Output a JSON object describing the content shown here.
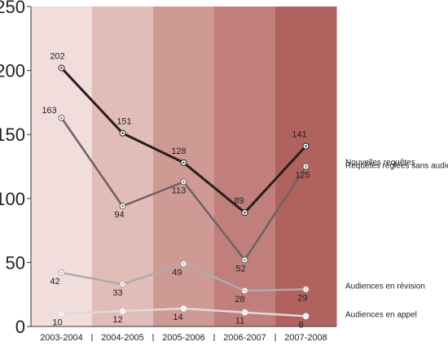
{
  "chart_data": {
    "type": "line",
    "title": "",
    "xlabel": "",
    "ylabel": "",
    "ylim": [
      0,
      250
    ],
    "yticks": [
      0,
      50,
      100,
      150,
      200,
      250
    ],
    "categories": [
      "2003-2004",
      "2004-2005",
      "2005-2006",
      "2006-2007",
      "2007-2008"
    ],
    "legend_position": "right",
    "grid": false,
    "band_colors": [
      "#f1dddb",
      "#e1bcb8",
      "#cf9994",
      "#c07f7b",
      "#b0625e"
    ],
    "series": [
      {
        "name": "Nouvelles requêtes",
        "values": [
          202,
          151,
          128,
          89,
          141
        ],
        "color": "#2b1d1e"
      },
      {
        "name": "Requêtes réglées sans audience",
        "values": [
          163,
          94,
          113,
          52,
          125
        ],
        "color": "#6e6262"
      },
      {
        "name": "Audiences en révision",
        "values": [
          42,
          33,
          49,
          28,
          29
        ],
        "color": "#b2aaaa"
      },
      {
        "name": "Audiences en appel",
        "values": [
          10,
          12,
          14,
          11,
          8
        ],
        "color": "#dedada"
      }
    ]
  }
}
